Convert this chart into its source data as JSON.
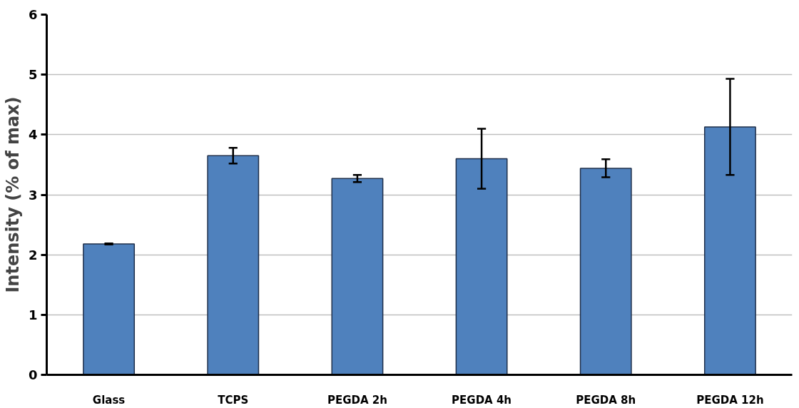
{
  "chart_data": {
    "type": "bar",
    "ylabel": "Intensity (% of max)",
    "categories": [
      "Glass",
      "TCPS",
      "PEGDA 2h",
      "PEGDA 4h",
      "PEGDA 8h",
      "PEGDA 12h"
    ],
    "values": [
      2.18,
      3.65,
      3.27,
      3.6,
      3.44,
      4.13
    ],
    "errors": [
      0.01,
      0.13,
      0.06,
      0.5,
      0.15,
      0.8
    ],
    "color": "#4f81bd",
    "ylim": [
      0,
      6
    ],
    "yticks": [
      0,
      1,
      2,
      3,
      4,
      5,
      6
    ],
    "grid": "y"
  }
}
